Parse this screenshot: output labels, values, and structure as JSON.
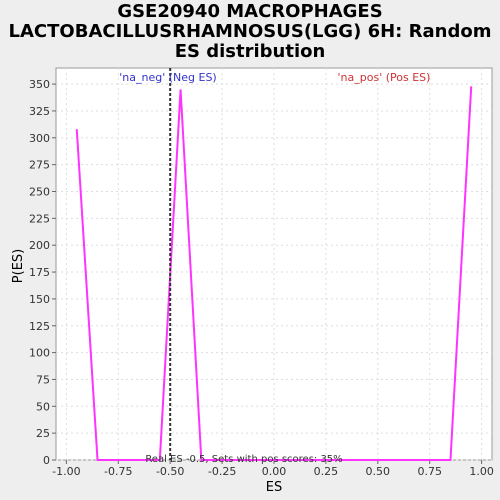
{
  "title_lines": [
    "GSE20940 MACROPHAGES",
    "LACTOBACILLUSRHAMNOSUS(LGG) 6H: Random",
    "ES distribution"
  ],
  "chart_data": {
    "type": "line",
    "xlabel": "ES",
    "ylabel": "P(ES)",
    "xlim": [
      -1.05,
      1.05
    ],
    "ylim": [
      0,
      365
    ],
    "xticks": [
      "-1.00",
      "-0.75",
      "-0.50",
      "-0.25",
      "0.00",
      "0.25",
      "0.50",
      "0.75",
      "1.00"
    ],
    "xtick_values": [
      -1.0,
      -0.75,
      -0.5,
      -0.25,
      0.0,
      0.25,
      0.5,
      0.75,
      1.0
    ],
    "yticks": [
      "0",
      "25",
      "50",
      "75",
      "100",
      "125",
      "150",
      "175",
      "200",
      "225",
      "250",
      "275",
      "300",
      "325",
      "350"
    ],
    "ytick_values": [
      0,
      25,
      50,
      75,
      100,
      125,
      150,
      175,
      200,
      225,
      250,
      275,
      300,
      325,
      350
    ],
    "grid": true,
    "series": [
      {
        "color": "#ff33ff",
        "x": [
          -0.95,
          -0.85,
          -0.55,
          -0.45,
          -0.35,
          0.85,
          0.95
        ],
        "y": [
          308,
          0,
          0,
          345,
          0,
          0,
          348
        ]
      }
    ],
    "real_es": -0.5,
    "annotations": {
      "neg_label": "'na_neg' (Neg ES)",
      "pos_label": "'na_pos' (Pos ES)",
      "bottom_note": "Real ES -0.5, Sets with pos scores: 35%"
    },
    "colors": {
      "neg": "#3333cc",
      "pos": "#cc3333",
      "curve": "#ff33ff",
      "real_es_line": "#333333",
      "plot_bg": "#ffffff",
      "grid": "#dddddd"
    }
  }
}
